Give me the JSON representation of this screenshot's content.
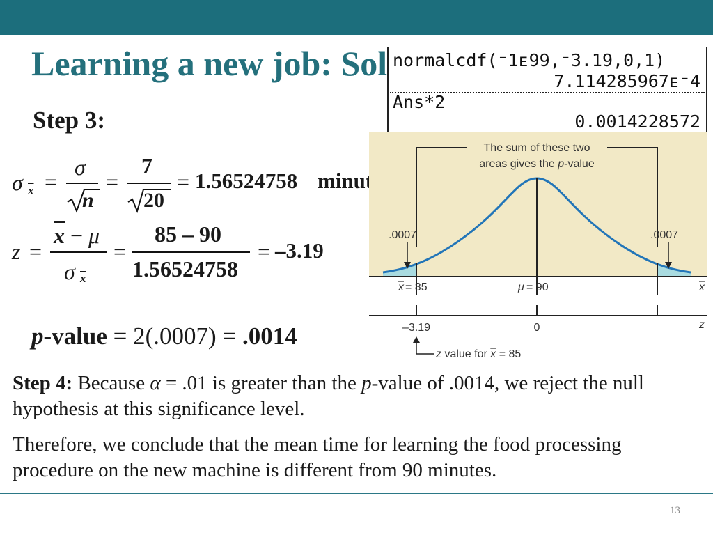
{
  "slide": {
    "title": "Learning a new job: Solution",
    "step3_label": "Step 3:",
    "page_number": "13"
  },
  "calculator": {
    "line1": "normalcdf(⁻1ᴇ99,⁻3.19,0,1)",
    "line2": "7.114285967ᴇ⁻4",
    "line3": "Ans*2",
    "line4": "0.0014228572"
  },
  "formula_sigma": {
    "lhs_symbol": "σ",
    "lhs_sub": "x",
    "num1": "σ",
    "den1": "n",
    "num2": "7",
    "den2": "20",
    "result": "1.56524758",
    "unit": "minutes"
  },
  "formula_z": {
    "lhs": "z",
    "num1_a": "x",
    "num1_b": "μ",
    "den1_symbol": "σ",
    "den1_sub": "x",
    "num2": "85 – 90",
    "den2": "1.56524758",
    "result": "–3.19"
  },
  "pvalue": {
    "label_p": "p",
    "label_rest": "-value",
    "expr": "2(.0007)",
    "result": ".0014"
  },
  "diagram": {
    "callout": "The sum of these two",
    "callout_line2_a": "areas gives the ",
    "callout_line2_p": "p",
    "callout_line2_b": "-value",
    "left_area": ".0007",
    "right_area": ".0007",
    "xbar_value": "= 85",
    "mu_label": "μ",
    "mu_value": "= 90",
    "axis_x_symbol": "x",
    "z_left": "–3.19",
    "z_center": "0",
    "axis_z_symbol": "z",
    "zvalue_note_z": "z",
    "zvalue_note_rest": " value for ",
    "zvalue_note_x": "x",
    "zvalue_note_end": " = 85",
    "colors": {
      "background": "#f2e9c6",
      "curve": "#2275b8",
      "shade": "#a9dbe0"
    }
  },
  "step4": {
    "label": "Step 4:",
    "text_a": " Because ",
    "alpha": "α",
    "text_b": " = .01 is greater than the ",
    "p": "p",
    "text_c": "-value of .0014, we reject the null hypothesis at this significance level."
  },
  "conclusion": "Therefore, we conclude that the mean time for learning the food processing procedure on the new machine is different from 90 minutes.",
  "theme": {
    "header_bar": "#1c6e7c",
    "title_color": "#24707c"
  }
}
